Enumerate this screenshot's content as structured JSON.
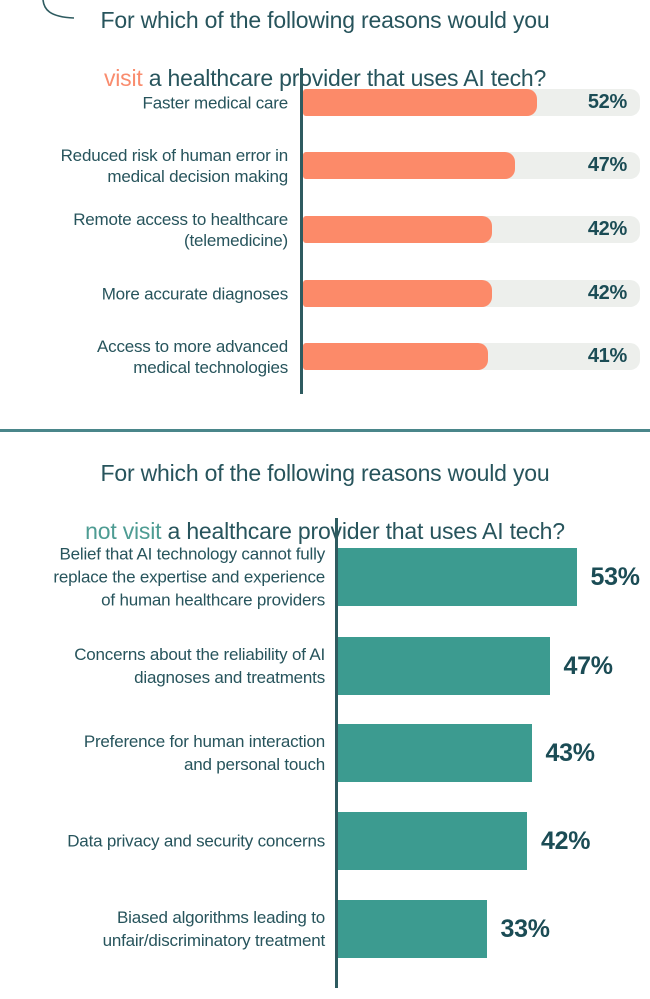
{
  "colors": {
    "background": "#ffffff",
    "heading_text": "#27545c",
    "label_text": "#27545c",
    "value_text": "#1b4c55",
    "visit_accent": "#f98c6e",
    "not_visit_accent": "#4e9c93",
    "bar_orange": "#fc8a69",
    "bar_track_gray": "#edefec",
    "bar_teal": "#3c9b90",
    "axis_line": "#2e5b60",
    "divider_line": "#4a868a"
  },
  "chart_data": [
    {
      "type": "bar",
      "orientation": "horizontal",
      "title_line1": "For which of the following reasons would you",
      "title_accent": "visit",
      "title_line2_rest": " a healthcare provider that uses AI tech?",
      "unit": "%",
      "bar_color": "#fc8a69",
      "has_background_track": true,
      "xlim": [
        0,
        75
      ],
      "legend": "none",
      "grid": false,
      "categories": [
        "Faster medical care",
        "Reduced risk of human error in\nmedical decision making",
        "Remote access to healthcare\n(telemedicine)",
        "More accurate diagnoses",
        "Access to more advanced\nmedical technologies"
      ],
      "values": [
        52,
        47,
        42,
        42,
        41
      ],
      "value_labels": [
        "52%",
        "47%",
        "42%",
        "42%",
        "41%"
      ]
    },
    {
      "type": "bar",
      "orientation": "horizontal",
      "title_line1": "For which of the following reasons would you",
      "title_accent": "not visit",
      "title_line2_rest": " a healthcare provider that uses AI tech?",
      "unit": "%",
      "bar_color": "#3c9b90",
      "has_background_track": false,
      "xlim": [
        0,
        69
      ],
      "legend": "none",
      "grid": false,
      "categories": [
        "Belief that AI technology cannot fully\nreplace the expertise and experience\nof human healthcare providers",
        "Concerns about the reliability of AI\ndiagnoses and treatments",
        "Preference for human interaction\nand personal touch",
        "Data privacy and security concerns",
        "Biased algorithms leading to\nunfair/discriminatory treatment"
      ],
      "values": [
        53,
        47,
        43,
        42,
        33
      ],
      "value_labels": [
        "53%",
        "47%",
        "43%",
        "42%",
        "33%"
      ]
    }
  ]
}
